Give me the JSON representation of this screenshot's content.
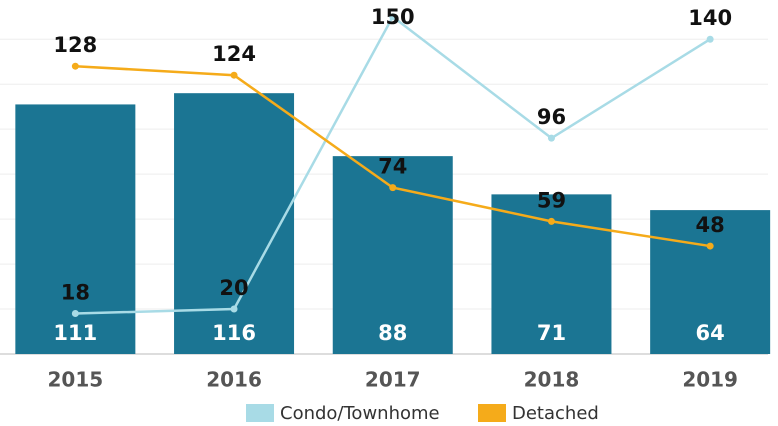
{
  "chart_data": {
    "type": "bar_line",
    "categories": [
      "2015",
      "2016",
      "2017",
      "2018",
      "2019"
    ],
    "bars": {
      "color": "#1b7593",
      "values": [
        111,
        116,
        88,
        71,
        64
      ]
    },
    "series": [
      {
        "name": "Condo/Townhome",
        "color": "#a8dbe6",
        "values": [
          18,
          20,
          150,
          96,
          140
        ]
      },
      {
        "name": "Detached",
        "color": "#f5ab1a",
        "values": [
          128,
          124,
          74,
          59,
          48
        ]
      }
    ],
    "ylim": [
      0,
      157
    ],
    "yticks": [
      0,
      20,
      40,
      60,
      80,
      100,
      120,
      140
    ],
    "grid": true
  }
}
